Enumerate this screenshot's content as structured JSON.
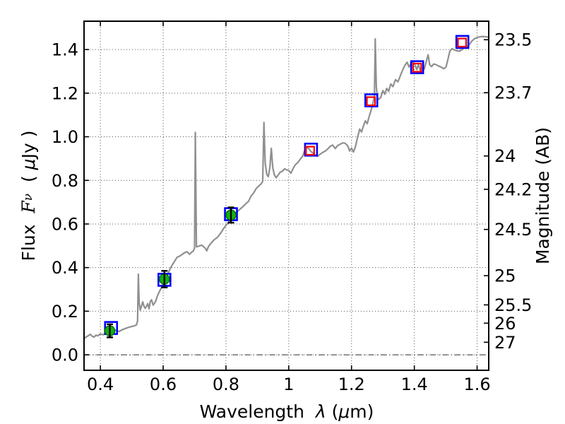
{
  "figure": {
    "background": "#ffffff",
    "frame_color": "#000000",
    "grid_color": "#555555",
    "tick_label_size": 24,
    "axis_label_size": 25,
    "xlabel_parts": [
      {
        "t": "Wavelength  ",
        "style": "plain"
      },
      {
        "t": "λ",
        "style": "math"
      },
      {
        "t": " (",
        "style": "plain"
      },
      {
        "t": "μ",
        "style": "math"
      },
      {
        "t": "m)",
        "style": "plain"
      }
    ],
    "ylabel_left_parts": [
      {
        "t": "Flux  ",
        "style": "plain"
      },
      {
        "t": "F",
        "style": "mathserif"
      },
      {
        "t": "ν",
        "style": "mathsub"
      },
      {
        "t": "  ( ",
        "style": "plain"
      },
      {
        "t": "μ",
        "style": "math"
      },
      {
        "t": "Jy )",
        "style": "plain"
      }
    ],
    "ylabel_right_parts": [
      {
        "t": "Magnitude (AB)",
        "style": "plain"
      }
    ]
  },
  "chart_data": {
    "type": "line",
    "title": "",
    "xlabel": "Wavelength λ (μm)",
    "ylabel": "Flux Fν ( μJy )",
    "ylabel_right": "Magnitude (AB)",
    "xlim": [
      0.348,
      1.637
    ],
    "ylim": [
      -0.071,
      1.53
    ],
    "grid": "dotted",
    "legend": "none",
    "x_ticks": [
      {
        "value": 0.4,
        "label": "0.4"
      },
      {
        "value": 0.6,
        "label": "0.6"
      },
      {
        "value": 0.8,
        "label": "0.8"
      },
      {
        "value": 1.0,
        "label": "1"
      },
      {
        "value": 1.2,
        "label": "1.2"
      },
      {
        "value": 1.4,
        "label": "1.4"
      },
      {
        "value": 1.6,
        "label": "1.6"
      }
    ],
    "y_ticks_left": [
      {
        "value": 0.0,
        "label": "0.0"
      },
      {
        "value": 0.2,
        "label": "0.2"
      },
      {
        "value": 0.4,
        "label": "0.4"
      },
      {
        "value": 0.6,
        "label": "0.6"
      },
      {
        "value": 0.8,
        "label": "0.8"
      },
      {
        "value": 1.0,
        "label": "1.0"
      },
      {
        "value": 1.2,
        "label": "1.2"
      },
      {
        "value": 1.4,
        "label": "1.4"
      }
    ],
    "y_ticks_right": [
      {
        "flux": 1.445,
        "label": "23.5"
      },
      {
        "flux": 1.202,
        "label": "23.7"
      },
      {
        "flux": 0.912,
        "label": "24"
      },
      {
        "flux": 0.759,
        "label": "24.2"
      },
      {
        "flux": 0.575,
        "label": "24.5"
      },
      {
        "flux": 0.363,
        "label": "25"
      },
      {
        "flux": 0.229,
        "label": "25.5"
      },
      {
        "flux": 0.145,
        "label": "26"
      },
      {
        "flux": 0.0575,
        "label": "27"
      }
    ],
    "zero_line": {
      "value": 0.0,
      "style": "dashdot",
      "color": "#555555"
    },
    "series": [
      {
        "name": "model-spectrum",
        "kind": "line",
        "color": "#909090",
        "width": 2.2,
        "points": [
          [
            0.348,
            0.075
          ],
          [
            0.355,
            0.082
          ],
          [
            0.362,
            0.088
          ],
          [
            0.368,
            0.094
          ],
          [
            0.374,
            0.085
          ],
          [
            0.38,
            0.081
          ],
          [
            0.386,
            0.09
          ],
          [
            0.392,
            0.087
          ],
          [
            0.398,
            0.095
          ],
          [
            0.404,
            0.094
          ],
          [
            0.41,
            0.092
          ],
          [
            0.416,
            0.099
          ],
          [
            0.422,
            0.102
          ],
          [
            0.428,
            0.104
          ],
          [
            0.434,
            0.107
          ],
          [
            0.44,
            0.11
          ],
          [
            0.447,
            0.113
          ],
          [
            0.453,
            0.11
          ],
          [
            0.46,
            0.107
          ],
          [
            0.468,
            0.114
          ],
          [
            0.475,
            0.118
          ],
          [
            0.482,
            0.122
          ],
          [
            0.49,
            0.126
          ],
          [
            0.497,
            0.129
          ],
          [
            0.504,
            0.131
          ],
          [
            0.51,
            0.134
          ],
          [
            0.515,
            0.137
          ],
          [
            0.5185,
            0.155
          ],
          [
            0.521,
            0.37
          ],
          [
            0.5235,
            0.24
          ],
          [
            0.527,
            0.205
          ],
          [
            0.531,
            0.223
          ],
          [
            0.535,
            0.243
          ],
          [
            0.539,
            0.222
          ],
          [
            0.543,
            0.213
          ],
          [
            0.547,
            0.224
          ],
          [
            0.551,
            0.235
          ],
          [
            0.555,
            0.211
          ],
          [
            0.559,
            0.245
          ],
          [
            0.563,
            0.252
          ],
          [
            0.568,
            0.228
          ],
          [
            0.572,
            0.236
          ],
          [
            0.576,
            0.245
          ],
          [
            0.581,
            0.268
          ],
          [
            0.586,
            0.284
          ],
          [
            0.591,
            0.298
          ],
          [
            0.596,
            0.312
          ],
          [
            0.601,
            0.33
          ],
          [
            0.607,
            0.35
          ],
          [
            0.613,
            0.366
          ],
          [
            0.62,
            0.388
          ],
          [
            0.628,
            0.41
          ],
          [
            0.636,
            0.428
          ],
          [
            0.644,
            0.447
          ],
          [
            0.652,
            0.452
          ],
          [
            0.66,
            0.46
          ],
          [
            0.668,
            0.468
          ],
          [
            0.676,
            0.473
          ],
          [
            0.684,
            0.461
          ],
          [
            0.69,
            0.47
          ],
          [
            0.696,
            0.476
          ],
          [
            0.7,
            0.49
          ],
          [
            0.7025,
            1.02
          ],
          [
            0.706,
            0.495
          ],
          [
            0.711,
            0.497
          ],
          [
            0.717,
            0.5
          ],
          [
            0.723,
            0.503
          ],
          [
            0.729,
            0.495
          ],
          [
            0.734,
            0.489
          ],
          [
            0.739,
            0.477
          ],
          [
            0.744,
            0.496
          ],
          [
            0.75,
            0.508
          ],
          [
            0.757,
            0.519
          ],
          [
            0.764,
            0.53
          ],
          [
            0.771,
            0.536
          ],
          [
            0.778,
            0.548
          ],
          [
            0.785,
            0.562
          ],
          [
            0.792,
            0.578
          ],
          [
            0.799,
            0.592
          ],
          [
            0.806,
            0.604
          ],
          [
            0.813,
            0.618
          ],
          [
            0.82,
            0.636
          ],
          [
            0.827,
            0.648
          ],
          [
            0.834,
            0.655
          ],
          [
            0.841,
            0.663
          ],
          [
            0.848,
            0.672
          ],
          [
            0.856,
            0.682
          ],
          [
            0.864,
            0.694
          ],
          [
            0.872,
            0.704
          ],
          [
            0.88,
            0.728
          ],
          [
            0.888,
            0.742
          ],
          [
            0.896,
            0.762
          ],
          [
            0.904,
            0.774
          ],
          [
            0.912,
            0.784
          ],
          [
            0.917,
            0.795
          ],
          [
            0.921,
            1.066
          ],
          [
            0.925,
            0.88
          ],
          [
            0.93,
            0.828
          ],
          [
            0.935,
            0.817
          ],
          [
            0.94,
            0.86
          ],
          [
            0.9445,
            0.947
          ],
          [
            0.949,
            0.86
          ],
          [
            0.954,
            0.826
          ],
          [
            0.96,
            0.812
          ],
          [
            0.966,
            0.824
          ],
          [
            0.973,
            0.838
          ],
          [
            0.98,
            0.842
          ],
          [
            0.987,
            0.853
          ],
          [
            0.994,
            0.848
          ],
          [
            1.0,
            0.845
          ],
          [
            1.007,
            0.833
          ],
          [
            1.014,
            0.855
          ],
          [
            1.021,
            0.872
          ],
          [
            1.028,
            0.88
          ],
          [
            1.036,
            0.896
          ],
          [
            1.044,
            0.91
          ],
          [
            1.051,
            0.938
          ],
          [
            1.057,
            0.952
          ],
          [
            1.064,
            0.945
          ],
          [
            1.071,
            0.932
          ],
          [
            1.078,
            0.925
          ],
          [
            1.085,
            0.915
          ],
          [
            1.092,
            0.91
          ],
          [
            1.1,
            0.92
          ],
          [
            1.108,
            0.928
          ],
          [
            1.116,
            0.934
          ],
          [
            1.124,
            0.944
          ],
          [
            1.132,
            0.956
          ],
          [
            1.14,
            0.962
          ],
          [
            1.148,
            0.946
          ],
          [
            1.156,
            0.96
          ],
          [
            1.164,
            0.966
          ],
          [
            1.172,
            0.972
          ],
          [
            1.18,
            0.97
          ],
          [
            1.188,
            0.958
          ],
          [
            1.194,
            0.935
          ],
          [
            1.2,
            0.948
          ],
          [
            1.206,
            0.93
          ],
          [
            1.212,
            0.952
          ],
          [
            1.219,
            0.996
          ],
          [
            1.226,
            1.035
          ],
          [
            1.232,
            1.022
          ],
          [
            1.238,
            1.05
          ],
          [
            1.244,
            1.073
          ],
          [
            1.25,
            1.06
          ],
          [
            1.256,
            1.092
          ],
          [
            1.262,
            1.12
          ],
          [
            1.268,
            1.152
          ],
          [
            1.273,
            1.19
          ],
          [
            1.2755,
            1.449
          ],
          [
            1.279,
            1.23
          ],
          [
            1.282,
            1.18
          ],
          [
            1.287,
            1.172
          ],
          [
            1.293,
            1.18
          ],
          [
            1.3,
            1.212
          ],
          [
            1.306,
            1.195
          ],
          [
            1.312,
            1.222
          ],
          [
            1.318,
            1.208
          ],
          [
            1.325,
            1.242
          ],
          [
            1.332,
            1.23
          ],
          [
            1.34,
            1.262
          ],
          [
            1.348,
            1.252
          ],
          [
            1.356,
            1.282
          ],
          [
            1.364,
            1.31
          ],
          [
            1.371,
            1.33
          ],
          [
            1.377,
            1.342
          ],
          [
            1.383,
            1.32
          ],
          [
            1.39,
            1.338
          ],
          [
            1.397,
            1.345
          ],
          [
            1.404,
            1.322
          ],
          [
            1.408,
            1.308
          ],
          [
            1.413,
            1.332
          ],
          [
            1.419,
            1.305
          ],
          [
            1.425,
            1.298
          ],
          [
            1.432,
            1.312
          ],
          [
            1.438,
            1.345
          ],
          [
            1.444,
            1.376
          ],
          [
            1.449,
            1.33
          ],
          [
            1.455,
            1.322
          ],
          [
            1.462,
            1.334
          ],
          [
            1.47,
            1.33
          ],
          [
            1.478,
            1.324
          ],
          [
            1.486,
            1.319
          ],
          [
            1.494,
            1.312
          ],
          [
            1.501,
            1.32
          ],
          [
            1.507,
            1.355
          ],
          [
            1.513,
            1.392
          ],
          [
            1.52,
            1.404
          ],
          [
            1.528,
            1.398
          ],
          [
            1.536,
            1.394
          ],
          [
            1.544,
            1.392
          ],
          [
            1.552,
            1.4
          ],
          [
            1.56,
            1.408
          ],
          [
            1.568,
            1.414
          ],
          [
            1.576,
            1.424
          ],
          [
            1.584,
            1.44
          ],
          [
            1.592,
            1.45
          ],
          [
            1.6,
            1.455
          ],
          [
            1.61,
            1.459
          ],
          [
            1.62,
            1.46
          ],
          [
            1.63,
            1.458
          ],
          [
            1.637,
            1.456
          ]
        ]
      },
      {
        "name": "photometry-blue-squares",
        "kind": "scatter",
        "marker": "open-square",
        "color": "#0000ff",
        "size": 17,
        "stroke": 2.6,
        "points": [
          [
            0.434,
            0.123
          ],
          [
            0.604,
            0.344
          ],
          [
            0.816,
            0.645
          ],
          [
            1.071,
            0.941
          ],
          [
            1.263,
            1.167
          ],
          [
            1.409,
            1.319
          ],
          [
            1.553,
            1.435
          ]
        ]
      },
      {
        "name": "photometry-red-squares",
        "kind": "scatter",
        "marker": "open-square",
        "color": "#ff0000",
        "size": 11.5,
        "stroke": 2.2,
        "points": [
          [
            1.068,
            0.936
          ],
          [
            1.262,
            1.163
          ],
          [
            1.409,
            1.317
          ],
          [
            1.552,
            1.432
          ]
        ]
      },
      {
        "name": "photometry-green-circles",
        "kind": "scatter",
        "marker": "filled-circle",
        "color": "#12b012",
        "edge_color": "#005a00",
        "radius": 7.2,
        "errorbar": {
          "color": "#000000",
          "width": 2.4,
          "cap_halfwidth": 4.5
        },
        "points": [
          [
            0.43,
            0.11,
            0.03
          ],
          [
            0.604,
            0.347,
            0.038
          ],
          [
            0.816,
            0.641,
            0.035
          ]
        ]
      }
    ]
  }
}
